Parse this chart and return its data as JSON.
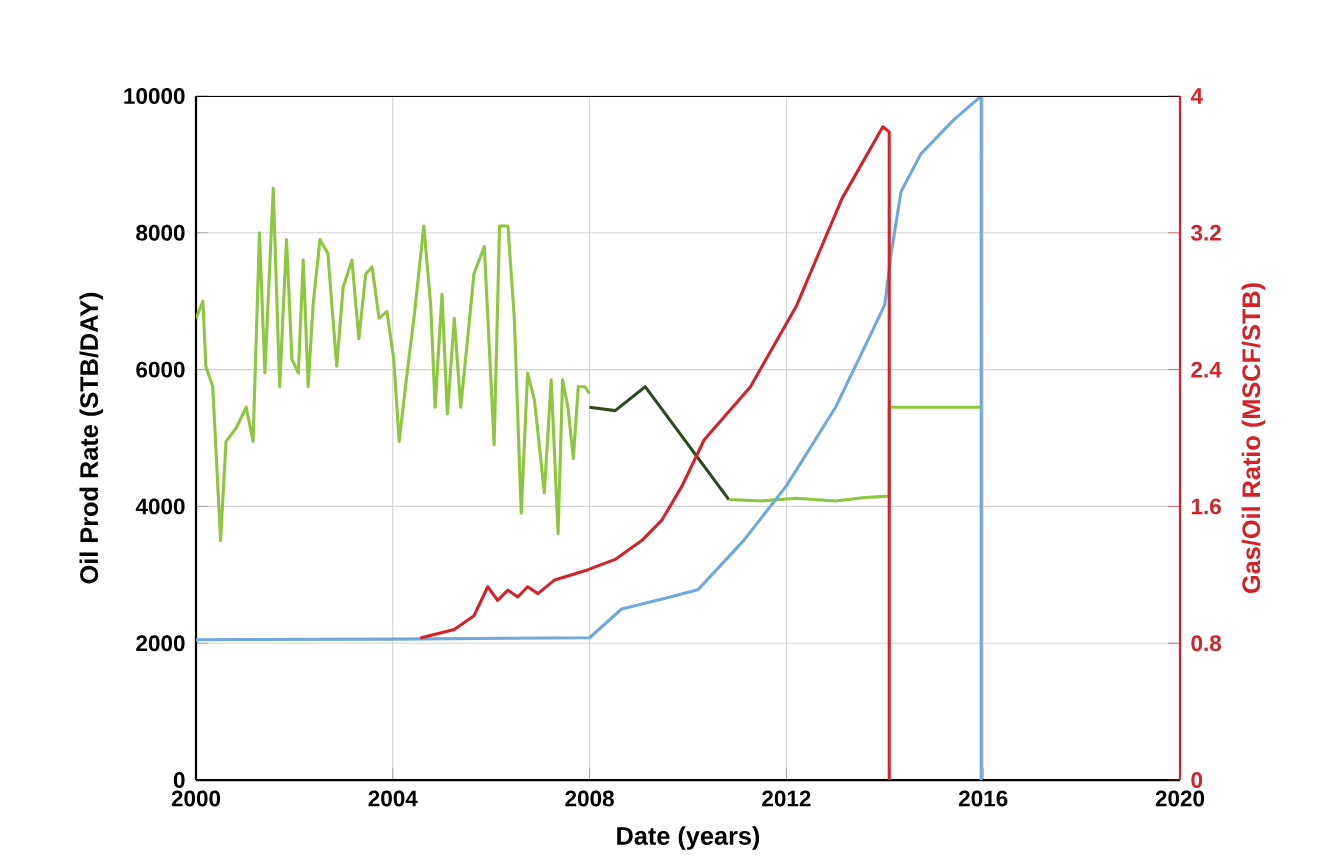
{
  "chart_data": {
    "type": "line",
    "xlabel": "Date (years)",
    "ylabel": "Oil Prod Rate (STB/DAY)",
    "y2label": "Gas/Oil Ratio (MSCF/STB)",
    "xlim": [
      2000,
      2020
    ],
    "xticks": [
      2000,
      2004,
      2008,
      2012,
      2016,
      2020
    ],
    "ylim": [
      0,
      10000
    ],
    "yticks": [
      0,
      2000,
      4000,
      6000,
      8000,
      10000
    ],
    "y2lim": [
      0,
      4
    ],
    "y2ticks": [
      0,
      0.8,
      1.6,
      2.4,
      3.2,
      4
    ],
    "grid": true,
    "marker": "none",
    "series": [
      {
        "color": "#8dc63f",
        "x": [
          2000.0,
          2000.14,
          2000.2,
          2000.34,
          2000.5,
          2000.61,
          2000.82,
          2001.02,
          2001.16,
          2001.29,
          2001.4,
          2001.57,
          2001.7,
          2001.84,
          2001.95,
          2002.08,
          2002.18,
          2002.28,
          2002.38,
          2002.52,
          2002.68,
          2002.86,
          2002.99,
          2003.17,
          2003.31,
          2003.45,
          2003.58,
          2003.72,
          2003.88,
          2004.02,
          2004.13,
          2004.29,
          2004.43,
          2004.63,
          2004.77,
          2004.86,
          2005.0,
          2005.11,
          2005.25,
          2005.38,
          2005.52,
          2005.65,
          2005.86,
          2006.06,
          2006.17,
          2006.34,
          2006.47,
          2006.61,
          2006.74,
          2006.88,
          2007.08,
          2007.22,
          2007.36,
          2007.45,
          2007.56,
          2007.67,
          2007.77,
          2007.9,
          2008.0
        ],
        "values": [
          6750,
          7000,
          6050,
          5750,
          3500,
          4950,
          5150,
          5450,
          4950,
          8000,
          5950,
          8650,
          5750,
          7900,
          6150,
          5950,
          7600,
          5750,
          6950,
          7900,
          7700,
          6050,
          7200,
          7600,
          6450,
          7400,
          7500,
          6750,
          6850,
          6150,
          4950,
          5950,
          6750,
          8100,
          6950,
          5450,
          7100,
          5350,
          6750,
          5450,
          6450,
          7400,
          7800,
          4900,
          8100,
          8100,
          6750,
          3900,
          5950,
          5550,
          4200,
          5850,
          3600,
          5850,
          5450,
          4700,
          5750,
          5750,
          5650
        ]
      },
      {
        "color": "#2d4a1e",
        "x": [
          2008.0,
          2008.52,
          2009.13,
          2010.83
        ],
        "values": [
          5450,
          5400,
          5750,
          4100
        ]
      },
      {
        "color": "#8dc63f",
        "x": [
          2010.83,
          2011.5,
          2012.2,
          2013.0,
          2013.6,
          2014.09,
          2014.09,
          2015.96
        ],
        "values": [
          4100,
          4080,
          4120,
          4080,
          4130,
          4150,
          5450,
          5450
        ]
      },
      {
        "color": "#6fa8dc",
        "x": [
          2000.0,
          2004.0,
          2008.0,
          2008.65,
          2009.5,
          2010.2,
          2011.13,
          2012.0,
          2013.0,
          2013.67,
          2014.0,
          2014.13,
          2014.33,
          2014.73,
          2015.4,
          2015.96,
          2015.96
        ],
        "values": [
          2050,
          2060,
          2080,
          2500,
          2650,
          2780,
          3500,
          4300,
          5450,
          6450,
          6950,
          7700,
          8600,
          9150,
          9650,
          10000,
          0
        ]
      },
      {
        "color": "#d2232a",
        "axis": "y2",
        "x": [
          2004.56,
          2005.25,
          2005.65,
          2005.93,
          2006.13,
          2006.34,
          2006.54,
          2006.74,
          2006.95,
          2007.29,
          2007.97,
          2008.52,
          2009.06,
          2009.47,
          2009.88,
          2010.33,
          2011.27,
          2012.2,
          2013.13,
          2013.96,
          2014.09,
          2014.09
        ],
        "values": [
          0.83,
          0.88,
          0.96,
          1.13,
          1.05,
          1.11,
          1.07,
          1.13,
          1.09,
          1.17,
          1.23,
          1.29,
          1.4,
          1.52,
          1.72,
          1.99,
          2.3,
          2.77,
          3.4,
          3.82,
          3.79,
          0
        ]
      }
    ]
  }
}
